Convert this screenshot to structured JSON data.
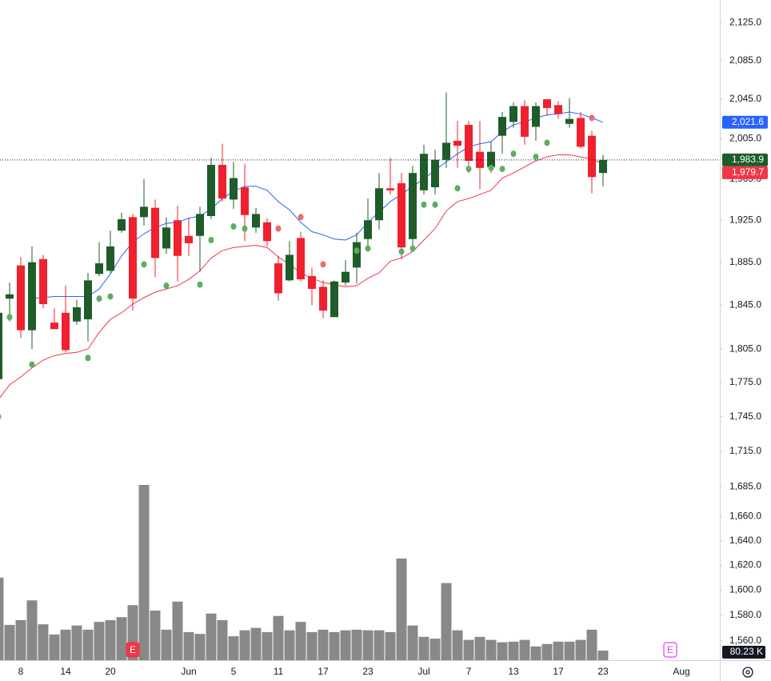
{
  "chart_data": {
    "type": "candlestick",
    "log_scale": true,
    "ylim": [
      1545,
      2149
    ],
    "yticks": [
      {
        "value": 2125,
        "label": "2,125.0"
      },
      {
        "value": 2085,
        "label": "2,085.0"
      },
      {
        "value": 2045,
        "label": "2,045.0"
      },
      {
        "value": 2005,
        "label": "2,005.0"
      },
      {
        "value": 1965,
        "label": "1,965.0"
      },
      {
        "value": 1925,
        "label": "1,925.0"
      },
      {
        "value": 1885,
        "label": "1,885.0"
      },
      {
        "value": 1845,
        "label": "1,845.0"
      },
      {
        "value": 1805,
        "label": "1,805.0"
      },
      {
        "value": 1775,
        "label": "1,775.0"
      },
      {
        "value": 1745,
        "label": "1,745.0"
      },
      {
        "value": 1715,
        "label": "1,715.0"
      },
      {
        "value": 1685,
        "label": "1,685.0"
      },
      {
        "value": 1660,
        "label": "1,660.0"
      },
      {
        "value": 1640,
        "label": "1,640.0"
      },
      {
        "value": 1620,
        "label": "1,620.0"
      },
      {
        "value": 1600,
        "label": "1,600.0"
      },
      {
        "value": 1580,
        "label": "1,580.0"
      },
      {
        "value": 1560,
        "label": "1,560.0"
      }
    ],
    "categories": [
      null,
      null,
      "8",
      null,
      null,
      null,
      "14",
      null,
      null,
      null,
      "20",
      null,
      null,
      null,
      null,
      null,
      null,
      "Jun",
      null,
      null,
      null,
      "5",
      null,
      null,
      null,
      "11",
      null,
      null,
      null,
      "17",
      null,
      null,
      null,
      "23",
      null,
      null,
      null,
      null,
      "Jul",
      null,
      null,
      null,
      "7",
      null,
      null,
      null,
      "13",
      null,
      null,
      null,
      "17",
      null,
      null,
      null,
      "23",
      null,
      null,
      null,
      null,
      null,
      null,
      "Aug"
    ],
    "up_color": "#1e5c2a",
    "down_color": "#f0202e",
    "open": [
      1778,
      1851,
      1882,
      1822,
      1888,
      1829,
      1838,
      1830,
      1832,
      1874,
      1877,
      1915,
      1928,
      1928,
      1937,
      1898,
      1925,
      1910,
      1910,
      1929,
      1979,
      1945,
      1957,
      1918,
      1923,
      1884,
      1868,
      1908,
      1872,
      1862,
      1834,
      1866,
      1880,
      1907,
      1925,
      1956,
      1961,
      1907,
      1954,
      1957,
      1984,
      2003,
      2019,
      1992,
      1977,
      2008,
      2022,
      2038,
      2017,
      2045,
      2039,
      2020,
      2026,
      2008,
      1971,
      null,
      null,
      null,
      null,
      null,
      null,
      null
    ],
    "high": [
      1845,
      1866,
      1890,
      1900,
      1892,
      1842,
      1863,
      1850,
      1875,
      1904,
      1915,
      1932,
      1931,
      1965,
      1945,
      1928,
      1939,
      1927,
      1938,
      1986,
      2000,
      1982,
      1980,
      1937,
      1927,
      1891,
      1905,
      1914,
      1880,
      1868,
      1868,
      1887,
      1913,
      1946,
      1971,
      1986,
      1971,
      1978,
      1999,
      1994,
      2052,
      2023,
      2023,
      2023,
      2002,
      2032,
      2042,
      2044,
      2042,
      2045,
      2043,
      2046,
      2032,
      2013,
      1989,
      null,
      null,
      null,
      null,
      null,
      null,
      null
    ],
    "low": [
      1772,
      1830,
      1815,
      1805,
      1842,
      1823,
      1802,
      1827,
      1812,
      1872,
      1875,
      1913,
      1840,
      1920,
      1871,
      1893,
      1867,
      1891,
      1876,
      1926,
      1943,
      1936,
      1905,
      1913,
      1900,
      1849,
      1867,
      1867,
      1845,
      1833,
      1834,
      1863,
      1865,
      1896,
      1916,
      1950,
      1888,
      1896,
      1950,
      1950,
      1976,
      1976,
      1971,
      1955,
      1971,
      1990,
      2016,
      1999,
      2003,
      2028,
      2025,
      2016,
      1995,
      1951,
      1958,
      null,
      null,
      null,
      null,
      null,
      null,
      null
    ],
    "close": [
      1838,
      1855,
      1822,
      1885,
      1846,
      1823,
      1804,
      1843,
      1868,
      1884,
      1900,
      1926,
      1851,
      1938,
      1889,
      1918,
      1891,
      1903,
      1931,
      1979,
      1946,
      1966,
      1930,
      1931,
      1905,
      1856,
      1892,
      1869,
      1860,
      1840,
      1867,
      1876,
      1904,
      1925,
      1956,
      1954,
      1899,
      1971,
      1990,
      1984,
      2001,
      1998,
      1983,
      1976,
      1992,
      2027,
      2038,
      2007,
      2038,
      2036,
      2030,
      2025,
      1997,
      1967,
      1983.9,
      null,
      null,
      null,
      null,
      null,
      null,
      null
    ],
    "lines": [
      {
        "color": "#2962ff",
        "values": [
          null,
          null,
          null,
          1851,
          1852,
          1853,
          1853,
          1853,
          1853,
          1860,
          1874,
          1891,
          1904,
          1912,
          1918,
          1922,
          1923,
          1927,
          1929,
          1936,
          1946,
          1953,
          1958,
          1958,
          1954,
          1943,
          1935,
          1923,
          1914,
          1911,
          1907,
          1906,
          1911,
          1923,
          1933,
          1943,
          1950,
          1958,
          1965,
          1974,
          1982,
          1990,
          1997,
          2000,
          2002,
          2012,
          2019,
          2022,
          2026,
          2029,
          2030,
          2032,
          2030,
          2026,
          2021.6,
          null,
          null,
          null,
          null,
          null,
          null,
          null
        ]
      },
      {
        "color": "#f23645",
        "values": [
          1760,
          1773,
          1780,
          1788,
          1795,
          1799,
          1801,
          1802,
          1805,
          1820,
          1832,
          1838,
          1846,
          1852,
          1857,
          1860,
          1863,
          1869,
          1877,
          1889,
          1896,
          1899,
          1900,
          1901,
          1899,
          1890,
          1883,
          1875,
          1870,
          1866,
          1864,
          1862,
          1863,
          1870,
          1875,
          1886,
          1889,
          1895,
          1906,
          1917,
          1934,
          1943,
          1946,
          1950,
          1954,
          1966,
          1971,
          1977,
          1983,
          1987,
          1989,
          1989,
          1987,
          1985,
          1979.7,
          null,
          null,
          null,
          null,
          null,
          null,
          null
        ]
      }
    ],
    "markers": [
      {
        "color": "#5cae62",
        "x": [
          0,
          1,
          3,
          8,
          9,
          10,
          13,
          15,
          18,
          19,
          21,
          22,
          32,
          33,
          36,
          37,
          38,
          39,
          41,
          42,
          44,
          45,
          46,
          48,
          49
        ],
        "values": [
          1745,
          1834,
          1791,
          1797,
          1851,
          1853,
          1883,
          1863,
          1864,
          1906,
          1919,
          1917,
          1896,
          1898,
          1895,
          1898,
          1940,
          1940,
          1956,
          1975,
          1976,
          1975,
          1990,
          1987,
          2001
        ]
      },
      {
        "color": "#f06a6a",
        "x": [
          25,
          27,
          29,
          53
        ],
        "values": [
          1917,
          1928,
          1883,
          2026
        ]
      }
    ],
    "volume": {
      "color": "#888888",
      "values": [
        690,
        295,
        335,
        500,
        300,
        215,
        255,
        290,
        255,
        320,
        335,
        360,
        460,
        1465,
        415,
        255,
        490,
        235,
        220,
        390,
        335,
        200,
        250,
        270,
        235,
        370,
        250,
        320,
        235,
        255,
        235,
        250,
        255,
        250,
        250,
        235,
        850,
        290,
        195,
        180,
        645,
        250,
        170,
        195,
        170,
        150,
        155,
        170,
        115,
        135,
        155,
        155,
        170,
        255,
        80.23,
        null,
        null,
        null,
        null,
        null,
        null,
        null
      ]
    },
    "last_volume_label": {
      "value": 80.23,
      "label": "80.23 K"
    },
    "price_labels": [
      {
        "value": 2021.6,
        "label": "2,021.6",
        "color": "#2962ff"
      },
      {
        "value": 1983.9,
        "label": "1,983.9",
        "color": "#1e5c2a"
      },
      {
        "value": 1979.7,
        "label": "1,979.7",
        "color": "#f23645"
      }
    ],
    "earnings": [
      {
        "x": 12,
        "label": "E",
        "color": "#f23645"
      },
      {
        "x": 60,
        "label": "E",
        "color": "#e040fb"
      }
    ]
  }
}
